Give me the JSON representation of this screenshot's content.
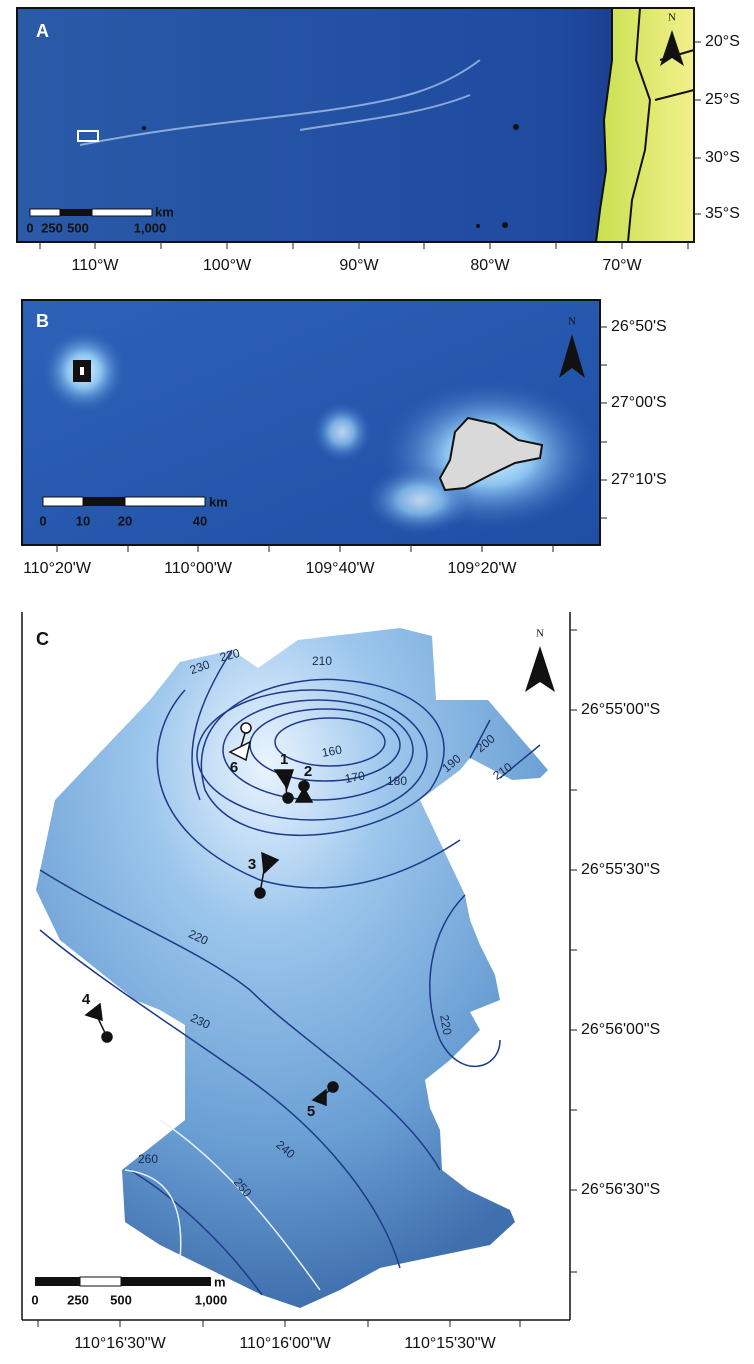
{
  "panels": [
    {
      "label": "A",
      "lat_labels": [
        "20°S",
        "25°S",
        "30°S",
        "35°S"
      ],
      "lon_labels": [
        "110°W",
        "100°W",
        "90°W",
        "80°W",
        "70°W"
      ],
      "scale": {
        "unit": "km",
        "labels": [
          "0",
          "250",
          "500",
          "1,000"
        ]
      },
      "north": "N"
    },
    {
      "label": "B",
      "lat_labels": [
        "26°50'S",
        "27°00'S",
        "27°10'S"
      ],
      "lon_labels": [
        "110°20'W",
        "110°00'W",
        "109°40'W",
        "109°20'W"
      ],
      "scale": {
        "unit": "km",
        "labels": [
          "0",
          "10",
          "20",
          "40"
        ]
      },
      "north": "N"
    },
    {
      "label": "C",
      "lat_labels": [
        "26°55'00\"S",
        "26°55'30\"S",
        "26°56'00\"S",
        "26°56'30\"S"
      ],
      "lon_labels": [
        "110°16'30\"W",
        "110°16'00\"W",
        "110°15'30\"W"
      ],
      "scale": {
        "unit": "m",
        "labels": [
          "0",
          "250",
          "500",
          "1,000"
        ]
      },
      "north": "N",
      "contour_labels": [
        "230",
        "220",
        "210",
        "160",
        "170",
        "180",
        "190",
        "200",
        "210",
        "220",
        "230",
        "220",
        "240",
        "250",
        "260"
      ],
      "sites": [
        "1",
        "2",
        "3",
        "4",
        "5",
        "6"
      ]
    }
  ]
}
